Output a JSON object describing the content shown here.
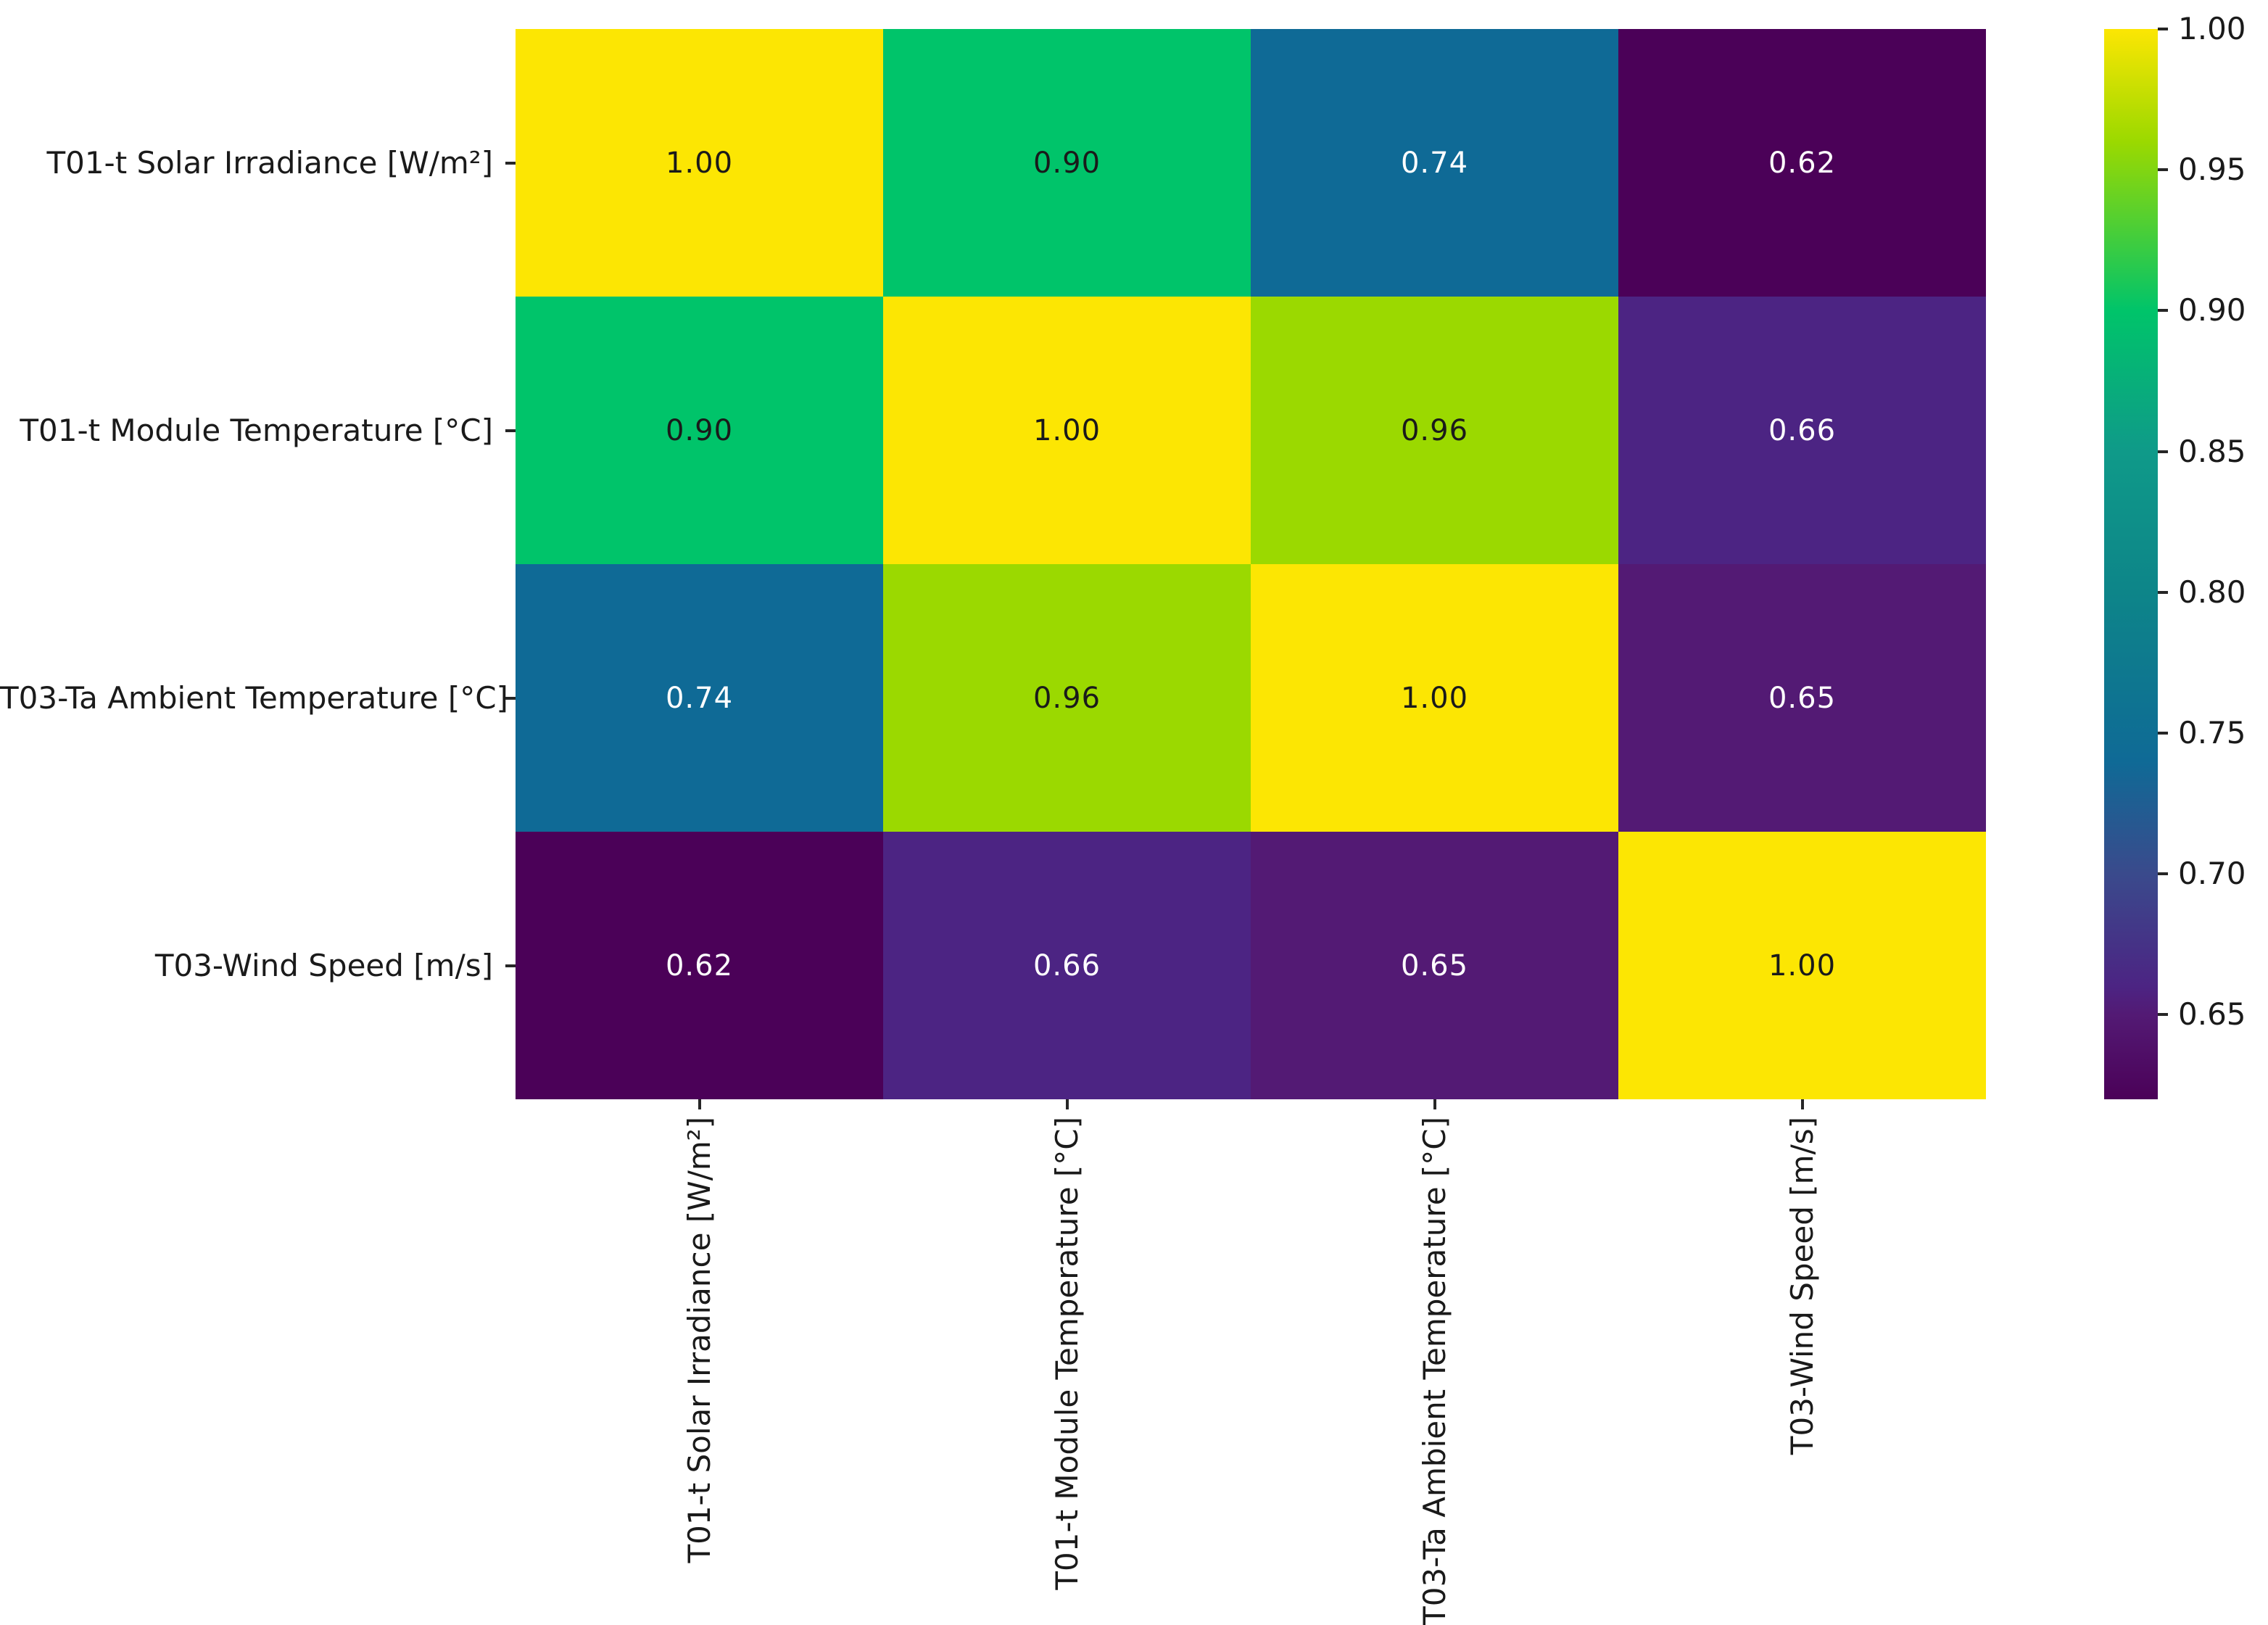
{
  "figure": {
    "background_color": "#ffffff",
    "text_color": "#1a1a1a",
    "tick_color": "#262626"
  },
  "chart_data": {
    "type": "heatmap",
    "title": "",
    "xlabel": "",
    "ylabel": "",
    "categories": [
      "T01-t Solar Irradiance  [W/m²]",
      "T01-t Module Temperature [°C]",
      "T03-Ta Ambient Temperature [°C]",
      "T03-Wind Speed [m/s]"
    ],
    "matrix": [
      [
        1.0,
        0.9,
        0.74,
        0.62
      ],
      [
        0.9,
        1.0,
        0.96,
        0.66
      ],
      [
        0.74,
        0.96,
        1.0,
        0.65
      ],
      [
        0.62,
        0.66,
        0.65,
        1.0
      ]
    ],
    "cell_text": [
      [
        "1.00",
        "0.90",
        "0.74",
        "0.62"
      ],
      [
        "0.90",
        "1.00",
        "0.96",
        "0.66"
      ],
      [
        "0.74",
        "0.96",
        "1.00",
        "0.65"
      ],
      [
        "0.62",
        "0.66",
        "0.65",
        "1.00"
      ]
    ],
    "annotation_text_dark": "#1a1a1a",
    "annotation_text_light": "#ffffff",
    "colormap": {
      "name": "viridis",
      "vmin": 0.62,
      "vmax": 1.0,
      "stops": [
        {
          "v": 1.0,
          "c": "#fce603"
        },
        {
          "v": 0.96,
          "c": "#9bd900"
        },
        {
          "v": 0.9,
          "c": "#00c46a"
        },
        {
          "v": 0.85,
          "c": "#0f9a89"
        },
        {
          "v": 0.8,
          "c": "#0d8589"
        },
        {
          "v": 0.74,
          "c": "#0f6a96"
        },
        {
          "v": 0.7,
          "c": "#3a4a8c"
        },
        {
          "v": 0.66,
          "c": "#4c2483"
        },
        {
          "v": 0.65,
          "c": "#531a74"
        },
        {
          "v": 0.62,
          "c": "#4b0158"
        }
      ]
    },
    "colorbar": {
      "tick_labels": [
        "1.00",
        "0.95",
        "0.90",
        "0.85",
        "0.80",
        "0.75",
        "0.70",
        "0.65"
      ],
      "tick_values": [
        1.0,
        0.95,
        0.9,
        0.85,
        0.8,
        0.75,
        0.7,
        0.65
      ],
      "position": "right",
      "grid": false
    }
  }
}
